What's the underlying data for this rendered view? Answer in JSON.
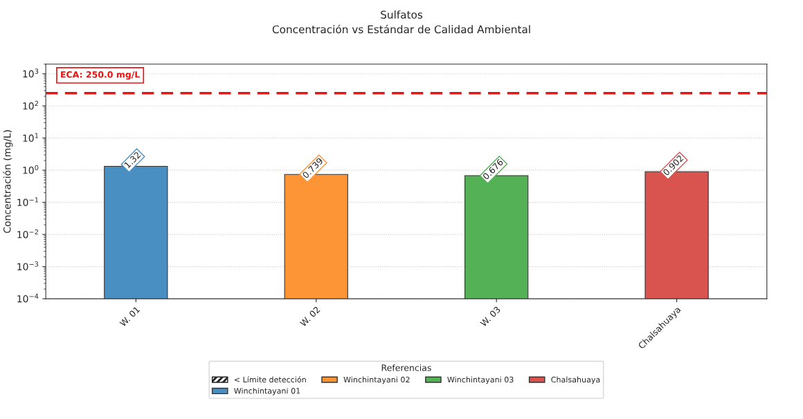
{
  "chart_data": {
    "type": "bar",
    "title": "Sulfatos",
    "subtitle": "Concentración vs Estándar de Calidad Ambiental",
    "ylabel": "Concentración (mg/L)",
    "legend_title": "Referencias",
    "categories": [
      "W. 01",
      "W. 02",
      "W. 03",
      "Chalsahuaya"
    ],
    "series": [
      {
        "name": "< Límite detección",
        "color": "#222222",
        "values": [
          null,
          null,
          null,
          null
        ]
      },
      {
        "name": "Winchintayani 01",
        "color": "#4a8fc2",
        "values": [
          1.32,
          null,
          null,
          null
        ]
      },
      {
        "name": "Winchintayani 02",
        "color": "#fd9536",
        "values": [
          null,
          0.739,
          null,
          null
        ]
      },
      {
        "name": "Winchintayani 03",
        "color": "#55b155",
        "values": [
          null,
          null,
          0.676,
          null
        ]
      },
      {
        "name": "Chalsahuaya",
        "color": "#d9534f",
        "values": [
          null,
          null,
          null,
          0.902
        ]
      }
    ],
    "log": "y",
    "ylim": [
      0.0001,
      2000
    ],
    "yticks": [
      {
        "value": 0.0001,
        "label": "10$^{−4}$"
      },
      {
        "value": 0.001,
        "label": "10$^{−3}$"
      },
      {
        "value": 0.01,
        "label": "10$^{−2}$"
      },
      {
        "value": 0.1,
        "label": "10$^{−1}$"
      },
      {
        "value": 1,
        "label": "10$^{0}$"
      },
      {
        "value": 10,
        "label": "10$^{1}$"
      },
      {
        "value": 100,
        "label": "10$^{2}$"
      },
      {
        "value": 1000,
        "label": "10$^{3}$"
      }
    ],
    "ref_lines": [
      {
        "axis": "y",
        "value": 250,
        "label": "ECA: 250.0 mg/L",
        "color": "#ee1111",
        "line_style": "dashed"
      }
    ],
    "data_labels": true,
    "grid": "y",
    "legend": "bottom"
  }
}
